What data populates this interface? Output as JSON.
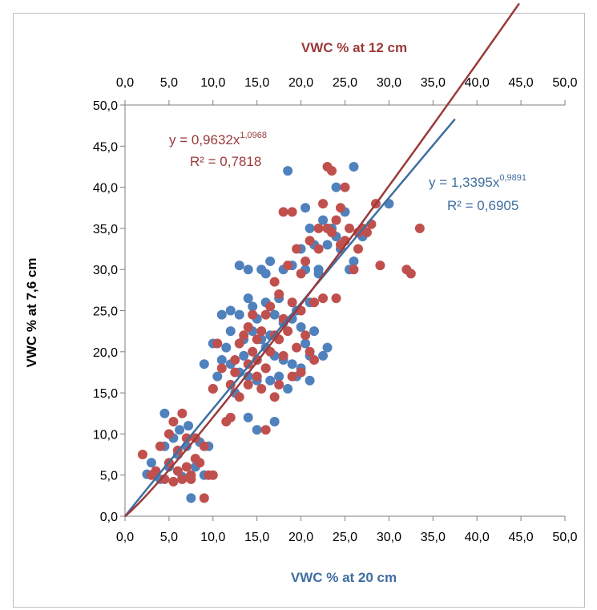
{
  "chart_data": {
    "type": "scatter",
    "title": "",
    "xlabel": "VWC % at 20 cm",
    "x2label": "VWC % at 12 cm",
    "ylabel": "VWC % at 7,6 cm",
    "xlim": [
      0,
      50
    ],
    "x2lim": [
      0,
      50
    ],
    "ylim": [
      0,
      50
    ],
    "x_ticks": [
      "0,0",
      "5,0",
      "10,0",
      "15,0",
      "20,0",
      "25,0",
      "30,0",
      "35,0",
      "40,0",
      "45,0",
      "50,0"
    ],
    "x2_ticks": [
      "0,0",
      "5,0",
      "10,0",
      "15,0",
      "20,0",
      "25,0",
      "30,0",
      "35,0",
      "40,0",
      "45,0",
      "50,0"
    ],
    "y_ticks": [
      "0,0",
      "5,0",
      "10,0",
      "15,0",
      "20,0",
      "25,0",
      "30,0",
      "35,0",
      "40,0",
      "45,0",
      "50,0"
    ],
    "grid": false,
    "colors": {
      "blue": "#4f81bd",
      "red": "#c0504d",
      "blue_line": "#3f6ea0",
      "red_line": "#9b3a3a"
    },
    "series": [
      {
        "axis": "x-bottom",
        "color": "blue",
        "points": [
          [
            2.5,
            5.1
          ],
          [
            3,
            6.5
          ],
          [
            4,
            4.5
          ],
          [
            4.5,
            8.5
          ],
          [
            4.5,
            12.5
          ],
          [
            5,
            6
          ],
          [
            5.5,
            9.5
          ],
          [
            6,
            7.5
          ],
          [
            6.2,
            10.5
          ],
          [
            6.5,
            4.8
          ],
          [
            7,
            8.5
          ],
          [
            7.2,
            11
          ],
          [
            7.5,
            2.2
          ],
          [
            8,
            6
          ],
          [
            8.5,
            9
          ],
          [
            9,
            5
          ],
          [
            9,
            18.5
          ],
          [
            9.5,
            8.5
          ],
          [
            10,
            21
          ],
          [
            10,
            15.5
          ],
          [
            10.5,
            17
          ],
          [
            11,
            19
          ],
          [
            11,
            24.5
          ],
          [
            11.5,
            20.5
          ],
          [
            12,
            18.5
          ],
          [
            12,
            22.5
          ],
          [
            12,
            25
          ],
          [
            12.5,
            15
          ],
          [
            13,
            17.5
          ],
          [
            13,
            24.5
          ],
          [
            13,
            30.5
          ],
          [
            13.5,
            19.5
          ],
          [
            13.5,
            21.5
          ],
          [
            14,
            12
          ],
          [
            14,
            17
          ],
          [
            14,
            26.5
          ],
          [
            14,
            30
          ],
          [
            14.5,
            22.5
          ],
          [
            14.5,
            25.5
          ],
          [
            15,
            10.5
          ],
          [
            15,
            16.5
          ],
          [
            15,
            19
          ],
          [
            15,
            24
          ],
          [
            15.5,
            30
          ],
          [
            15.5,
            21.5
          ],
          [
            16,
            18
          ],
          [
            16,
            20.5
          ],
          [
            16,
            26
          ],
          [
            16,
            29.5
          ],
          [
            16.5,
            16.5
          ],
          [
            16.5,
            22
          ],
          [
            17,
            11.5
          ],
          [
            17,
            19.5
          ],
          [
            17,
            24.5
          ],
          [
            17.5,
            17
          ],
          [
            17.5,
            26.5
          ],
          [
            18,
            19
          ],
          [
            18,
            23.5
          ],
          [
            18,
            30
          ],
          [
            18.5,
            15.5
          ],
          [
            18.5,
            42
          ],
          [
            19,
            18.5
          ],
          [
            19,
            24
          ],
          [
            19,
            30.5
          ],
          [
            19.5,
            17
          ],
          [
            19.5,
            25
          ],
          [
            20,
            18
          ],
          [
            20,
            23
          ],
          [
            20,
            32.5
          ],
          [
            20.5,
            21
          ],
          [
            20.5,
            30
          ],
          [
            21,
            19.5
          ],
          [
            21,
            26
          ],
          [
            21,
            35
          ],
          [
            21.5,
            22.5
          ],
          [
            21.5,
            33
          ],
          [
            22,
            30
          ],
          [
            22.5,
            36
          ],
          [
            22.5,
            19.5
          ],
          [
            23,
            20.5
          ],
          [
            23,
            33
          ],
          [
            23.5,
            35
          ],
          [
            24,
            40
          ],
          [
            24,
            34
          ],
          [
            25,
            37
          ],
          [
            25.5,
            30
          ],
          [
            26,
            31
          ],
          [
            26,
            42.5
          ],
          [
            27,
            34
          ],
          [
            30,
            38
          ],
          [
            16.5,
            31
          ],
          [
            20.5,
            37.5
          ],
          [
            21,
            16.5
          ],
          [
            22,
            29.5
          ],
          [
            24.5,
            32.5
          ]
        ]
      },
      {
        "axis": "x-top",
        "color": "red",
        "points": [
          [
            2,
            7.5
          ],
          [
            3,
            5
          ],
          [
            3.5,
            5.5
          ],
          [
            4,
            8.5
          ],
          [
            4.5,
            4.5
          ],
          [
            5,
            10
          ],
          [
            5,
            6.5
          ],
          [
            5.5,
            4.2
          ],
          [
            5.5,
            11.5
          ],
          [
            6,
            5.5
          ],
          [
            6,
            8
          ],
          [
            6.5,
            12.5
          ],
          [
            6.5,
            4.5
          ],
          [
            7,
            6
          ],
          [
            7,
            9.5
          ],
          [
            7.5,
            5
          ],
          [
            7.5,
            4.5
          ],
          [
            8,
            7
          ],
          [
            8,
            9.5
          ],
          [
            8.5,
            6.5
          ],
          [
            9,
            2.2
          ],
          [
            9,
            8.5
          ],
          [
            9.5,
            5
          ],
          [
            10,
            5
          ],
          [
            10,
            15.5
          ],
          [
            10.5,
            21
          ],
          [
            11,
            18
          ],
          [
            11.5,
            11.5
          ],
          [
            12,
            12
          ],
          [
            12,
            16
          ],
          [
            12.5,
            17.5
          ],
          [
            12.5,
            19
          ],
          [
            13,
            14.5
          ],
          [
            13,
            21
          ],
          [
            13.5,
            22
          ],
          [
            14,
            16
          ],
          [
            14,
            18.5
          ],
          [
            14,
            23
          ],
          [
            14.5,
            20
          ],
          [
            14.5,
            24.5
          ],
          [
            15,
            17
          ],
          [
            15,
            19
          ],
          [
            15,
            21.5
          ],
          [
            15.5,
            22.5
          ],
          [
            15.5,
            15.5
          ],
          [
            16,
            10.5
          ],
          [
            16,
            18
          ],
          [
            16,
            24.5
          ],
          [
            16.5,
            20
          ],
          [
            16.5,
            25.5
          ],
          [
            17,
            14.5
          ],
          [
            17,
            22
          ],
          [
            17,
            28.5
          ],
          [
            17.5,
            16
          ],
          [
            17.5,
            21.5
          ],
          [
            17.5,
            27
          ],
          [
            18,
            37
          ],
          [
            18,
            19.5
          ],
          [
            18,
            24
          ],
          [
            18.5,
            30.5
          ],
          [
            18.5,
            22.5
          ],
          [
            19,
            37
          ],
          [
            19,
            17
          ],
          [
            19,
            26
          ],
          [
            19.5,
            32.5
          ],
          [
            19.5,
            20.5
          ],
          [
            20,
            25
          ],
          [
            20,
            29.5
          ],
          [
            20.5,
            22
          ],
          [
            20.5,
            31
          ],
          [
            21,
            33.5
          ],
          [
            21,
            20
          ],
          [
            21.5,
            26
          ],
          [
            22,
            35
          ],
          [
            22,
            32.5
          ],
          [
            22.5,
            26.5
          ],
          [
            22.5,
            38
          ],
          [
            23,
            35
          ],
          [
            23,
            42.5
          ],
          [
            23.5,
            42
          ],
          [
            23.5,
            34.5
          ],
          [
            24,
            36
          ],
          [
            24,
            26.5
          ],
          [
            24.5,
            37.5
          ],
          [
            25,
            40
          ],
          [
            25,
            33.5
          ],
          [
            25.5,
            35
          ],
          [
            26,
            30
          ],
          [
            26.5,
            32.5
          ],
          [
            27,
            35
          ],
          [
            27.5,
            34.5
          ],
          [
            28,
            35.5
          ],
          [
            28.5,
            38
          ],
          [
            29,
            30.5
          ],
          [
            32,
            30
          ],
          [
            32.5,
            29.5
          ],
          [
            33.5,
            35
          ],
          [
            20,
            17.5
          ],
          [
            21.5,
            19
          ],
          [
            24.5,
            33
          ],
          [
            26.5,
            34.5
          ]
        ]
      }
    ],
    "trendlines": [
      {
        "axis": "x-bottom",
        "color": "blue_line",
        "a": 1.3395,
        "b": 0.9891,
        "x_range": [
          0,
          37.5
        ]
      },
      {
        "axis": "x-top",
        "color": "red_line",
        "a": 0.9632,
        "b": 1.0968,
        "x_range": [
          0,
          44.8
        ]
      }
    ],
    "annotations": {
      "red_eq_prefix": "y = 0,9632x",
      "red_eq_exp": "1,0968",
      "red_r2": "R² = 0,7818",
      "blue_eq_prefix": "y = 1,3395x",
      "blue_eq_exp": "0,9891",
      "blue_r2": "R² = 0,6905"
    }
  }
}
